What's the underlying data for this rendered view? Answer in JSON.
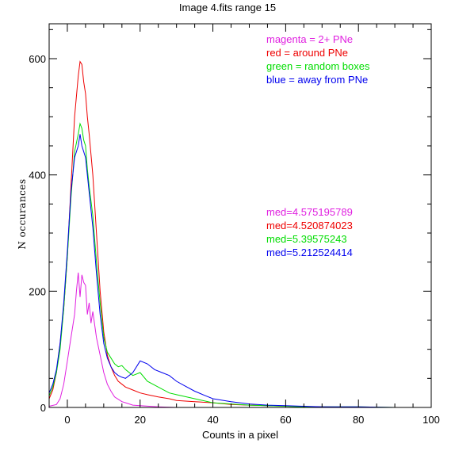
{
  "chart_data": {
    "type": "line",
    "title": "Image 4.fits   range 15",
    "xlabel": "Counts in a pixel",
    "ylabel": "N occurances",
    "xlim": [
      -5,
      100
    ],
    "ylim": [
      0,
      660
    ],
    "xticks": [
      0,
      20,
      40,
      60,
      80,
      100
    ],
    "yticks": [
      0,
      200,
      400,
      600
    ],
    "grid": false,
    "legend_entries": [
      {
        "text": "magenta = 2+ PNe",
        "color": "#e020e0"
      },
      {
        "text": "red = around PNe",
        "color": "#ee0000"
      },
      {
        "text": "green = random boxes",
        "color": "#00dd00"
      },
      {
        "text": "blue = away from PNe",
        "color": "#0000ee"
      }
    ],
    "median_labels": [
      {
        "text": "med=4.575195789",
        "color": "#e020e0"
      },
      {
        "text": "med=4.520874023",
        "color": "#ee0000"
      },
      {
        "text": "med=5.39575243",
        "color": "#00dd00"
      },
      {
        "text": "med=5.212524414",
        "color": "#0000ee"
      }
    ],
    "series": [
      {
        "color": "#e020e0",
        "x": [
          -5,
          -3,
          -2,
          -1,
          0,
          1,
          2,
          2.5,
          3,
          3.5,
          4,
          4.5,
          5,
          5.5,
          6,
          6.5,
          7,
          8,
          9,
          10,
          11,
          12,
          13,
          14,
          15,
          16,
          18,
          20,
          25,
          30,
          35,
          40,
          50,
          60,
          80,
          100
        ],
        "y": [
          2,
          5,
          15,
          40,
          80,
          120,
          160,
          200,
          232,
          190,
          228,
          215,
          210,
          160,
          180,
          145,
          165,
          120,
          90,
          60,
          40,
          28,
          18,
          14,
          10,
          8,
          4,
          3,
          1,
          0,
          0,
          0,
          0,
          0,
          0,
          0
        ]
      },
      {
        "color": "#ee0000",
        "x": [
          -5,
          -4,
          -3,
          -2,
          -1,
          0,
          1,
          2,
          3,
          3.5,
          4,
          4.5,
          5,
          5.5,
          6,
          7,
          8,
          9,
          10,
          11,
          12,
          13,
          14,
          15,
          16,
          18,
          20,
          22,
          25,
          28,
          30,
          35,
          40,
          45,
          50,
          55,
          60,
          70,
          80,
          100
        ],
        "y": [
          15,
          30,
          60,
          110,
          170,
          260,
          380,
          500,
          570,
          595,
          590,
          560,
          540,
          500,
          470,
          400,
          300,
          200,
          130,
          90,
          70,
          55,
          45,
          40,
          35,
          30,
          25,
          22,
          18,
          15,
          12,
          10,
          8,
          5,
          4,
          3,
          2,
          1,
          0,
          0
        ]
      },
      {
        "color": "#00dd00",
        "x": [
          -5,
          -4,
          -3,
          -2,
          -1,
          0,
          1,
          2,
          3,
          3.5,
          4,
          4.5,
          5,
          5.5,
          6,
          7,
          8,
          9,
          10,
          11,
          12,
          13,
          14,
          15,
          16,
          18,
          20,
          22,
          25,
          28,
          30,
          35,
          40,
          45,
          50,
          55,
          60,
          65,
          70,
          80,
          90,
          100
        ],
        "y": [
          20,
          35,
          60,
          100,
          170,
          260,
          360,
          440,
          470,
          488,
          480,
          460,
          450,
          410,
          380,
          330,
          250,
          180,
          120,
          95,
          85,
          75,
          70,
          72,
          65,
          55,
          60,
          45,
          35,
          25,
          22,
          15,
          8,
          6,
          4,
          3,
          2,
          1,
          1,
          1,
          0,
          0
        ]
      },
      {
        "color": "#0000ee",
        "x": [
          -5,
          -4,
          -3,
          -2,
          -1,
          0,
          1,
          2,
          3,
          3.5,
          4,
          4.5,
          5,
          5.5,
          6,
          7,
          8,
          9,
          10,
          11,
          12,
          13,
          14,
          15,
          16,
          18,
          20,
          22,
          24,
          26,
          28,
          30,
          32,
          35,
          38,
          40,
          45,
          50,
          55,
          60,
          65,
          70,
          80,
          90,
          100
        ],
        "y": [
          25,
          40,
          65,
          110,
          180,
          270,
          370,
          430,
          450,
          470,
          450,
          440,
          430,
          400,
          370,
          310,
          230,
          160,
          110,
          85,
          70,
          60,
          55,
          52,
          50,
          60,
          80,
          75,
          65,
          60,
          55,
          45,
          38,
          28,
          20,
          15,
          10,
          6,
          4,
          3,
          2,
          1,
          1,
          0,
          0
        ]
      }
    ]
  }
}
